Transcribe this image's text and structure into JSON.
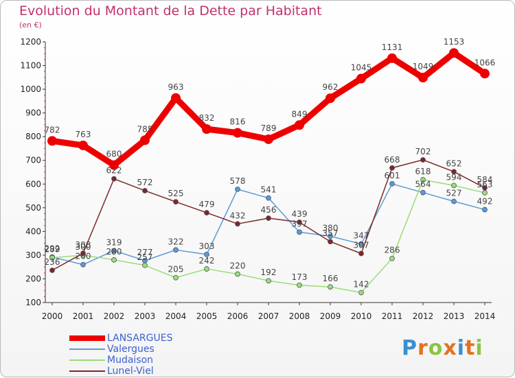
{
  "header": {
    "title": "Evolution du Montant de la Dette par Habitant",
    "subtitle": "(en €)"
  },
  "logo": {
    "text": [
      "P",
      "r",
      "o",
      "x",
      "i",
      "t",
      "i"
    ],
    "colors": [
      "#3a8fd1",
      "#e5711f",
      "#8cc43f",
      "#e5711f",
      "#3a8fd1",
      "#e5711f",
      "#8cc43f"
    ]
  },
  "chart_data": {
    "type": "line",
    "title": "Evolution du Montant de la Dette par Habitant",
    "subtitle": "(en €)",
    "x": [
      "2000",
      "2001",
      "2002",
      "2003",
      "2004",
      "2005",
      "2006",
      "2007",
      "2008",
      "2009",
      "2010",
      "2011",
      "2012",
      "2013",
      "2014"
    ],
    "ylim": [
      100,
      1200
    ],
    "yticks": [
      "100",
      "200",
      "300",
      "400",
      "500",
      "600",
      "700",
      "800",
      "900",
      "1000",
      "1100",
      "1200"
    ],
    "grid": false,
    "legend_position": "bottom-left",
    "series": [
      {
        "name": "LANSARGUES",
        "color": "#ee0000",
        "thick": true,
        "values": [
          782,
          763,
          680,
          785,
          963,
          832,
          816,
          789,
          849,
          962,
          1045,
          1131,
          1049,
          1153,
          1066
        ]
      },
      {
        "name": "Valergues",
        "color": "#5b9bd5",
        "thick": false,
        "values": [
          292,
          260,
          319,
          277,
          322,
          303,
          578,
          541,
          397,
          380,
          347,
          601,
          564,
          527,
          492
        ]
      },
      {
        "name": "Mudaison",
        "color": "#99dd77",
        "thick": false,
        "values": [
          289,
          300,
          280,
          257,
          205,
          242,
          220,
          192,
          173,
          166,
          142,
          286,
          618,
          594,
          563
        ]
      },
      {
        "name": "Lunel-Viel",
        "color": "#7b2828",
        "thick": false,
        "values": [
          236,
          308,
          622,
          572,
          525,
          479,
          432,
          456,
          439,
          357,
          307,
          668,
          702,
          652,
          584
        ]
      }
    ]
  }
}
